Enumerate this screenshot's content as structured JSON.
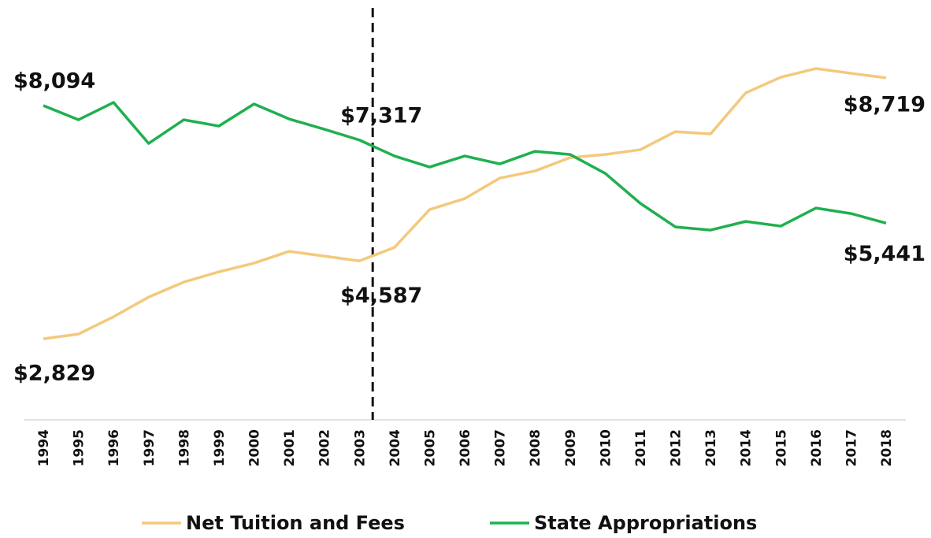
{
  "chart_data": {
    "type": "line",
    "categories": [
      "1994",
      "1995",
      "1996",
      "1997",
      "1998",
      "1999",
      "2000",
      "2001",
      "2002",
      "2003",
      "2004",
      "2005",
      "2006",
      "2007",
      "2008",
      "2009",
      "2010",
      "2011",
      "2012",
      "2013",
      "2014",
      "2015",
      "2016",
      "2017",
      "2018"
    ],
    "series": [
      {
        "name": "Net Tuition and Fees",
        "color": "#f3c97c",
        "values": [
          2829,
          2936,
          3327,
          3772,
          4110,
          4341,
          4537,
          4804,
          4697,
          4587,
          4893,
          5746,
          5995,
          6458,
          6618,
          6920,
          6991,
          7098,
          7507,
          7454,
          8379,
          8734,
          8930,
          8823,
          8719
        ],
        "value_labels": [
          "$2,829",
          null,
          null,
          null,
          null,
          null,
          null,
          null,
          null,
          "$4,587",
          null,
          null,
          null,
          null,
          null,
          null,
          null,
          null,
          null,
          null,
          null,
          null,
          null,
          null,
          "$8,719"
        ]
      },
      {
        "name": "State Appropriations",
        "color": "#1fb04f",
        "values": [
          8094,
          7774,
          8165,
          7240,
          7774,
          7632,
          8130,
          7792,
          7560,
          7317,
          6956,
          6707,
          6956,
          6778,
          7062,
          6991,
          6564,
          5888,
          5355,
          5284,
          5479,
          5373,
          5781,
          5657,
          5441
        ],
        "value_labels": [
          "$8,094",
          null,
          null,
          null,
          null,
          null,
          null,
          null,
          null,
          "$7,317",
          null,
          null,
          null,
          null,
          null,
          null,
          null,
          null,
          null,
          null,
          null,
          null,
          null,
          null,
          "$5,441"
        ]
      }
    ],
    "ylim": [
      1000,
      10300
    ],
    "legend": "bottom"
  }
}
